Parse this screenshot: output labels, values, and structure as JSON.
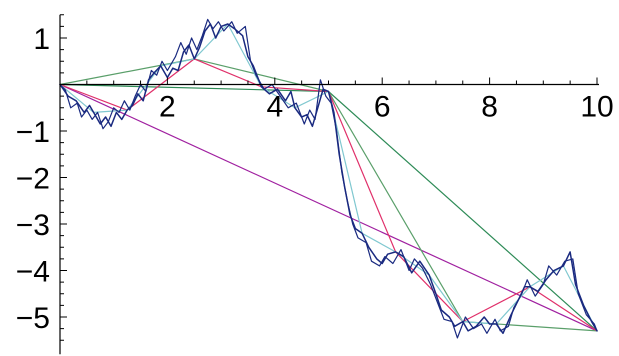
{
  "chart_data": {
    "type": "line",
    "title": "",
    "xlabel": "",
    "ylabel": "",
    "xlim": [
      0,
      10
    ],
    "ylim": [
      -5.8,
      1.5
    ],
    "x_ticks": [
      2,
      4,
      6,
      8,
      10
    ],
    "x_tick_labels": [
      "2",
      "4",
      "6",
      "8",
      "10"
    ],
    "y_ticks": [
      1,
      -1,
      -2,
      -3,
      -4,
      -5
    ],
    "y_tick_labels": [
      "1",
      "−1",
      "−2",
      "−3",
      "−4",
      "−5"
    ],
    "grid": false,
    "legend": "none",
    "series": [
      {
        "color": "#a020a0",
        "width": 1.2,
        "points": [
          [
            0,
            0
          ],
          [
            10,
            -5.3
          ]
        ]
      },
      {
        "color": "#2e8b57",
        "width": 1.2,
        "points": [
          [
            0,
            0
          ],
          [
            5,
            -0.15
          ],
          [
            10,
            -5.3
          ]
        ]
      },
      {
        "color": "#5a9f6a",
        "width": 1.2,
        "points": [
          [
            0,
            0
          ],
          [
            2.5,
            0.55
          ],
          [
            5,
            -0.15
          ],
          [
            7.5,
            -5.1
          ],
          [
            10,
            -5.3
          ]
        ]
      },
      {
        "color": "#e0306a",
        "width": 1.2,
        "points": [
          [
            0,
            0
          ],
          [
            1.25,
            -0.55
          ],
          [
            2.5,
            0.55
          ],
          [
            3.75,
            -0.05
          ],
          [
            5,
            -0.15
          ],
          [
            6.25,
            -3.6
          ],
          [
            7.5,
            -5.1
          ],
          [
            8.75,
            -4.35
          ],
          [
            10,
            -5.3
          ]
        ]
      },
      {
        "color": "#80c8d0",
        "width": 1.2,
        "points": [
          [
            0,
            0
          ],
          [
            0.625,
            -0.6
          ],
          [
            1.25,
            -0.55
          ],
          [
            1.875,
            0.4
          ],
          [
            2.5,
            0.55
          ],
          [
            3.125,
            1.3
          ],
          [
            3.75,
            -0.05
          ],
          [
            4.375,
            -0.5
          ],
          [
            5,
            -0.15
          ],
          [
            5.625,
            -3.2
          ],
          [
            6.25,
            -3.6
          ],
          [
            6.875,
            -4.1
          ],
          [
            7.5,
            -5.1
          ],
          [
            8.125,
            -5.15
          ],
          [
            8.75,
            -4.35
          ],
          [
            9.375,
            -3.9
          ],
          [
            10,
            -5.3
          ]
        ]
      },
      {
        "color": "#1a2a80",
        "width": 1.5,
        "points": [
          [
            0,
            0
          ],
          [
            0.15,
            -0.25
          ],
          [
            0.3,
            -0.35
          ],
          [
            0.45,
            -0.6
          ],
          [
            0.55,
            -0.45
          ],
          [
            0.625,
            -0.6
          ],
          [
            0.75,
            -0.85
          ],
          [
            0.85,
            -0.7
          ],
          [
            0.95,
            -0.9
          ],
          [
            1.05,
            -0.6
          ],
          [
            1.15,
            -0.75
          ],
          [
            1.25,
            -0.55
          ],
          [
            1.35,
            -0.45
          ],
          [
            1.45,
            -0.2
          ],
          [
            1.55,
            -0.35
          ],
          [
            1.65,
            0.1
          ],
          [
            1.75,
            0.25
          ],
          [
            1.875,
            0.4
          ],
          [
            2.0,
            0.15
          ],
          [
            2.1,
            0.35
          ],
          [
            2.2,
            0.3
          ],
          [
            2.3,
            0.7
          ],
          [
            2.4,
            0.85
          ],
          [
            2.5,
            0.55
          ],
          [
            2.6,
            0.8
          ],
          [
            2.7,
            1.15
          ],
          [
            2.8,
            1.3
          ],
          [
            2.9,
            1.0
          ],
          [
            3.0,
            1.25
          ],
          [
            3.125,
            1.3
          ],
          [
            3.25,
            1.2
          ],
          [
            3.4,
            1.05
          ],
          [
            3.5,
            0.6
          ],
          [
            3.6,
            0.4
          ],
          [
            3.75,
            -0.05
          ],
          [
            3.9,
            -0.2
          ],
          [
            4.05,
            -0.1
          ],
          [
            4.2,
            -0.35
          ],
          [
            4.3,
            -0.15
          ],
          [
            4.375,
            -0.5
          ],
          [
            4.5,
            -0.7
          ],
          [
            4.6,
            -0.65
          ],
          [
            4.7,
            -0.9
          ],
          [
            4.8,
            -0.5
          ],
          [
            4.9,
            -0.1
          ],
          [
            5,
            -0.15
          ],
          [
            5.1,
            -0.6
          ],
          [
            5.2,
            -1.5
          ],
          [
            5.3,
            -2.2
          ],
          [
            5.4,
            -2.8
          ],
          [
            5.5,
            -3.1
          ],
          [
            5.625,
            -3.2
          ],
          [
            5.75,
            -3.5
          ],
          [
            5.9,
            -3.75
          ],
          [
            6.0,
            -3.85
          ],
          [
            6.1,
            -3.65
          ],
          [
            6.25,
            -3.6
          ],
          [
            6.4,
            -3.7
          ],
          [
            6.55,
            -4.05
          ],
          [
            6.7,
            -3.8
          ],
          [
            6.875,
            -4.1
          ],
          [
            7.0,
            -4.5
          ],
          [
            7.1,
            -4.85
          ],
          [
            7.25,
            -5.0
          ],
          [
            7.35,
            -5.2
          ],
          [
            7.5,
            -5.1
          ],
          [
            7.6,
            -5.3
          ],
          [
            7.75,
            -5.2
          ],
          [
            7.9,
            -5.0
          ],
          [
            8.0,
            -5.15
          ],
          [
            8.125,
            -5.15
          ],
          [
            8.25,
            -5.35
          ],
          [
            8.4,
            -4.95
          ],
          [
            8.55,
            -4.6
          ],
          [
            8.65,
            -4.35
          ],
          [
            8.75,
            -4.35
          ],
          [
            8.9,
            -4.45
          ],
          [
            9.05,
            -4.2
          ],
          [
            9.2,
            -4.0
          ],
          [
            9.375,
            -3.9
          ],
          [
            9.5,
            -3.6
          ],
          [
            9.6,
            -4.3
          ],
          [
            9.75,
            -4.75
          ],
          [
            9.9,
            -5.1
          ],
          [
            10,
            -5.3
          ]
        ]
      },
      {
        "color": "#1a2a80",
        "width": 1.2,
        "points": [
          [
            0,
            0
          ],
          [
            0.1,
            -0.12
          ],
          [
            0.2,
            -0.5
          ],
          [
            0.32,
            -0.4
          ],
          [
            0.4,
            -0.7
          ],
          [
            0.5,
            -0.55
          ],
          [
            0.6,
            -0.75
          ],
          [
            0.7,
            -0.6
          ],
          [
            0.8,
            -0.95
          ],
          [
            0.9,
            -0.8
          ],
          [
            1.0,
            -0.5
          ],
          [
            1.1,
            -0.6
          ],
          [
            1.2,
            -0.35
          ],
          [
            1.3,
            -0.55
          ],
          [
            1.4,
            -0.25
          ],
          [
            1.5,
            0.0
          ],
          [
            1.6,
            -0.15
          ],
          [
            1.7,
            0.3
          ],
          [
            1.8,
            0.2
          ],
          [
            1.9,
            0.5
          ],
          [
            2.0,
            0.3
          ],
          [
            2.15,
            0.6
          ],
          [
            2.25,
            0.9
          ],
          [
            2.35,
            0.65
          ],
          [
            2.45,
            1.0
          ],
          [
            2.55,
            0.75
          ],
          [
            2.65,
            1.05
          ],
          [
            2.75,
            1.4
          ],
          [
            2.85,
            1.2
          ],
          [
            2.95,
            1.35
          ],
          [
            3.05,
            1.15
          ],
          [
            3.2,
            1.35
          ],
          [
            3.3,
            1.1
          ],
          [
            3.45,
            1.25
          ],
          [
            3.55,
            0.5
          ],
          [
            3.65,
            0.2
          ],
          [
            3.8,
            -0.1
          ],
          [
            3.95,
            0.0
          ],
          [
            4.1,
            -0.25
          ],
          [
            4.25,
            -0.5
          ],
          [
            4.4,
            -0.4
          ],
          [
            4.55,
            -0.85
          ],
          [
            4.65,
            -0.55
          ],
          [
            4.75,
            -0.75
          ],
          [
            4.85,
            0.1
          ],
          [
            4.95,
            -0.25
          ],
          [
            5.05,
            -0.4
          ],
          [
            5.15,
            -1.0
          ],
          [
            5.25,
            -1.9
          ],
          [
            5.35,
            -2.5
          ],
          [
            5.45,
            -3.0
          ],
          [
            5.55,
            -3.3
          ],
          [
            5.7,
            -3.4
          ],
          [
            5.8,
            -3.8
          ],
          [
            5.95,
            -3.9
          ],
          [
            6.05,
            -3.7
          ],
          [
            6.2,
            -3.85
          ],
          [
            6.35,
            -3.55
          ],
          [
            6.5,
            -4.0
          ],
          [
            6.6,
            -3.75
          ],
          [
            6.75,
            -3.95
          ],
          [
            6.9,
            -4.3
          ],
          [
            7.05,
            -4.75
          ],
          [
            7.15,
            -5.05
          ],
          [
            7.3,
            -5.1
          ],
          [
            7.4,
            -5.45
          ],
          [
            7.55,
            -5.0
          ],
          [
            7.7,
            -5.25
          ],
          [
            7.85,
            -5.15
          ],
          [
            7.95,
            -5.35
          ],
          [
            8.1,
            -5.05
          ],
          [
            8.2,
            -5.3
          ],
          [
            8.35,
            -5.2
          ],
          [
            8.45,
            -4.8
          ],
          [
            8.6,
            -4.5
          ],
          [
            8.7,
            -4.2
          ],
          [
            8.85,
            -4.55
          ],
          [
            9.0,
            -4.3
          ],
          [
            9.1,
            -3.9
          ],
          [
            9.25,
            -4.1
          ],
          [
            9.4,
            -3.8
          ],
          [
            9.55,
            -3.75
          ],
          [
            9.65,
            -4.5
          ],
          [
            9.8,
            -4.95
          ],
          [
            9.95,
            -5.15
          ],
          [
            10,
            -5.3
          ]
        ]
      }
    ]
  }
}
